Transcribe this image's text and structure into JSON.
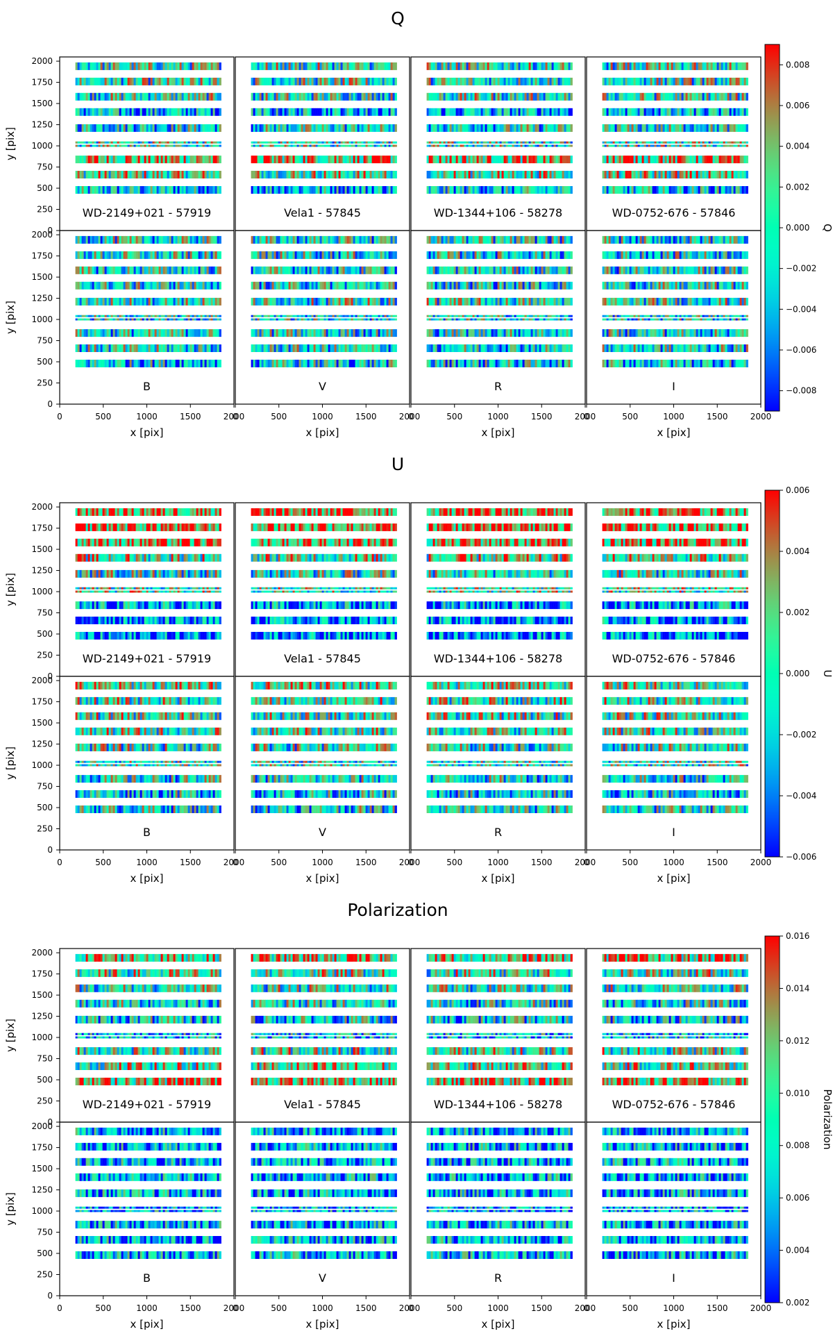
{
  "chart_data": [
    {
      "type": "heatmap",
      "title": "Q",
      "colorbar_label": "Q",
      "colorbar_range": [
        -0.009,
        0.009
      ],
      "colorbar_ticks": [
        -0.008,
        -0.006,
        -0.004,
        -0.002,
        0.0,
        0.002,
        0.004,
        0.006,
        0.008
      ],
      "colorbar_tick_labels": [
        "−0.008",
        "−0.006",
        "−0.004",
        "−0.002",
        "0.000",
        "0.002",
        "0.004",
        "0.006",
        "0.008"
      ],
      "top_row_labels": [
        "WD-2149+021 - 57919",
        "Vela1 - 57845",
        "WD-1344+106 - 58278",
        "WD-0752-676 - 57846"
      ],
      "bottom_row_labels": [
        "B",
        "V",
        "R",
        "I"
      ],
      "xlabel": "x [pix]",
      "ylabel": "y [pix]",
      "xlim": [
        0,
        2000
      ],
      "ylim": [
        0,
        2050
      ],
      "x_ticks": [
        0,
        500,
        1000,
        1500,
        2000
      ],
      "y_ticks": [
        0,
        250,
        500,
        750,
        1000,
        1250,
        1500,
        1750,
        2000
      ],
      "strip_x_range": [
        180,
        1850
      ],
      "strip_centers_y": [
        480,
        660,
        840,
        1000,
        1040,
        1210,
        1400,
        1580,
        1760,
        1940
      ],
      "top_row_strip_means": [
        0.35,
        0.6,
        0.75,
        0.5,
        0.5,
        0.45,
        0.3,
        0.5,
        0.5,
        0.5
      ],
      "bottom_row_strip_means": [
        0.4,
        0.45,
        0.45,
        0.45,
        0.45,
        0.5,
        0.45,
        0.45,
        0.45,
        0.45
      ]
    },
    {
      "type": "heatmap",
      "title": "U",
      "colorbar_label": "U",
      "colorbar_range": [
        -0.006,
        0.006
      ],
      "colorbar_ticks": [
        -0.006,
        -0.004,
        -0.002,
        0.0,
        0.002,
        0.004,
        0.006
      ],
      "colorbar_tick_labels": [
        "−0.006",
        "−0.004",
        "−0.002",
        "0.000",
        "0.002",
        "0.004",
        "0.006"
      ],
      "top_row_labels": [
        "WD-2149+021 - 57919",
        "Vela1 - 57845",
        "WD-1344+106 - 58278",
        "WD-0752-676 - 57846"
      ],
      "bottom_row_labels": [
        "B",
        "V",
        "R",
        "I"
      ],
      "xlabel": "x [pix]",
      "ylabel": "y [pix]",
      "xlim": [
        0,
        2000
      ],
      "ylim": [
        0,
        2050
      ],
      "x_ticks": [
        0,
        500,
        1000,
        1500,
        2000
      ],
      "y_ticks": [
        0,
        250,
        500,
        750,
        1000,
        1250,
        1500,
        1750,
        2000
      ],
      "strip_x_range": [
        180,
        1850
      ],
      "strip_centers_y": [
        480,
        660,
        840,
        1000,
        1040,
        1210,
        1400,
        1580,
        1760,
        1940
      ],
      "top_row_strip_means": [
        0.15,
        0.2,
        0.25,
        0.55,
        0.55,
        0.5,
        0.6,
        0.8,
        0.85,
        0.85
      ],
      "bottom_row_strip_means": [
        0.45,
        0.4,
        0.45,
        0.5,
        0.5,
        0.5,
        0.55,
        0.55,
        0.55,
        0.6
      ]
    },
    {
      "type": "heatmap",
      "title": "Polarization",
      "colorbar_label": "Polarization",
      "colorbar_range": [
        0.002,
        0.016
      ],
      "colorbar_ticks": [
        0.002,
        0.004,
        0.006,
        0.008,
        0.01,
        0.012,
        0.014,
        0.016
      ],
      "colorbar_tick_labels": [
        "0.002",
        "0.004",
        "0.006",
        "0.008",
        "0.010",
        "0.012",
        "0.014",
        "0.016"
      ],
      "top_row_labels": [
        "WD-2149+021 - 57919",
        "Vela1 - 57845",
        "WD-1344+106 - 58278",
        "WD-0752-676 - 57846"
      ],
      "bottom_row_labels": [
        "B",
        "V",
        "R",
        "I"
      ],
      "xlabel": "x [pix]",
      "ylabel": "y [pix]",
      "xlim": [
        0,
        2000
      ],
      "ylim": [
        0,
        2050
      ],
      "x_ticks": [
        0,
        500,
        1000,
        1500,
        2000
      ],
      "y_ticks": [
        0,
        250,
        500,
        750,
        1000,
        1250,
        1500,
        1750,
        2000
      ],
      "strip_x_range": [
        180,
        1850
      ],
      "strip_centers_y": [
        480,
        660,
        840,
        1000,
        1040,
        1210,
        1400,
        1580,
        1760,
        1940
      ],
      "top_row_strip_means": [
        0.75,
        0.6,
        0.55,
        0.35,
        0.35,
        0.4,
        0.45,
        0.5,
        0.55,
        0.7
      ],
      "bottom_row_strip_means": [
        0.3,
        0.3,
        0.3,
        0.3,
        0.3,
        0.3,
        0.3,
        0.3,
        0.3,
        0.3
      ]
    }
  ]
}
